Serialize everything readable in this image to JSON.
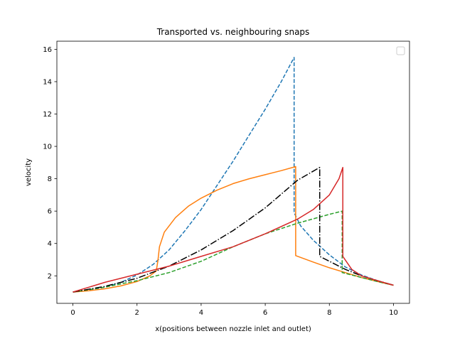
{
  "chart_data": {
    "type": "line",
    "title": "Transported vs. neighbouring snaps",
    "xlabel": "x(positions between nozzle inlet and outlet)",
    "ylabel": "velocity",
    "xlim": [
      -0.5,
      10.5
    ],
    "ylim": [
      0.3,
      16.5
    ],
    "xticks": [
      0,
      2,
      4,
      6,
      8,
      10
    ],
    "yticks": [
      2,
      4,
      6,
      8,
      10,
      12,
      14,
      16
    ],
    "grid": false,
    "legend": {
      "placement": "top-right",
      "entries": []
    },
    "series": [
      {
        "color": "#1f77b4",
        "linestyle": "dashed",
        "points": [
          [
            0,
            1.0
          ],
          [
            0.5,
            1.12
          ],
          [
            1.0,
            1.3
          ],
          [
            1.5,
            1.6
          ],
          [
            2.0,
            2.05
          ],
          [
            2.5,
            2.7
          ],
          [
            3.0,
            3.6
          ],
          [
            3.5,
            4.8
          ],
          [
            4.0,
            6.1
          ],
          [
            4.5,
            7.6
          ],
          [
            5.0,
            9.1
          ],
          [
            5.5,
            10.7
          ],
          [
            6.0,
            12.3
          ],
          [
            6.5,
            14.0
          ],
          [
            6.9,
            15.5
          ],
          [
            6.9,
            5.9
          ],
          [
            7.1,
            5.1
          ],
          [
            7.5,
            4.2
          ],
          [
            8.0,
            3.3
          ],
          [
            8.5,
            2.55
          ],
          [
            9.0,
            2.05
          ],
          [
            9.5,
            1.7
          ],
          [
            10.0,
            1.42
          ]
        ]
      },
      {
        "color": "#ff7f0e",
        "linestyle": "solid",
        "points": [
          [
            0,
            1.0
          ],
          [
            0.5,
            1.08
          ],
          [
            1.0,
            1.2
          ],
          [
            1.5,
            1.38
          ],
          [
            2.0,
            1.65
          ],
          [
            2.4,
            2.0
          ],
          [
            2.6,
            2.3
          ],
          [
            2.65,
            2.9
          ],
          [
            2.7,
            3.8
          ],
          [
            2.85,
            4.7
          ],
          [
            3.2,
            5.6
          ],
          [
            3.6,
            6.3
          ],
          [
            4.0,
            6.8
          ],
          [
            4.5,
            7.3
          ],
          [
            5.0,
            7.7
          ],
          [
            5.5,
            8.0
          ],
          [
            6.0,
            8.25
          ],
          [
            6.5,
            8.5
          ],
          [
            6.95,
            8.75
          ],
          [
            6.95,
            3.25
          ],
          [
            7.5,
            2.85
          ],
          [
            8.0,
            2.5
          ],
          [
            8.5,
            2.2
          ],
          [
            9.0,
            1.9
          ],
          [
            9.5,
            1.65
          ],
          [
            10.0,
            1.42
          ]
        ]
      },
      {
        "color": "#2ca02c",
        "linestyle": "dashed",
        "points": [
          [
            0,
            1.0
          ],
          [
            1.0,
            1.3
          ],
          [
            2.0,
            1.7
          ],
          [
            3.0,
            2.2
          ],
          [
            4.0,
            2.9
          ],
          [
            5.0,
            3.8
          ],
          [
            6.0,
            4.6
          ],
          [
            7.0,
            5.25
          ],
          [
            8.0,
            5.8
          ],
          [
            8.4,
            6.0
          ],
          [
            8.4,
            2.2
          ],
          [
            9.0,
            1.9
          ],
          [
            9.5,
            1.65
          ],
          [
            10.0,
            1.42
          ]
        ]
      },
      {
        "color": "#000000",
        "linestyle": "dashdot",
        "points": [
          [
            0,
            1.0
          ],
          [
            1.0,
            1.35
          ],
          [
            2.0,
            1.85
          ],
          [
            3.0,
            2.6
          ],
          [
            4.0,
            3.6
          ],
          [
            5.0,
            4.8
          ],
          [
            6.0,
            6.2
          ],
          [
            7.0,
            7.9
          ],
          [
            7.7,
            8.7
          ],
          [
            7.7,
            3.2
          ],
          [
            8.0,
            2.9
          ],
          [
            8.5,
            2.4
          ],
          [
            9.0,
            2.0
          ],
          [
            9.5,
            1.7
          ],
          [
            10.0,
            1.42
          ]
        ]
      },
      {
        "color": "#d62728",
        "linestyle": "solid",
        "points": [
          [
            0,
            1.0
          ],
          [
            1.0,
            1.6
          ],
          [
            2.0,
            2.1
          ],
          [
            3.0,
            2.6
          ],
          [
            4.0,
            3.2
          ],
          [
            5.0,
            3.8
          ],
          [
            6.0,
            4.6
          ],
          [
            7.0,
            5.5
          ],
          [
            7.5,
            6.1
          ],
          [
            8.0,
            7.0
          ],
          [
            8.3,
            8.0
          ],
          [
            8.42,
            8.7
          ],
          [
            8.42,
            3.2
          ],
          [
            8.7,
            2.4
          ],
          [
            9.0,
            2.0
          ],
          [
            9.5,
            1.7
          ],
          [
            10.0,
            1.42
          ]
        ]
      }
    ]
  }
}
